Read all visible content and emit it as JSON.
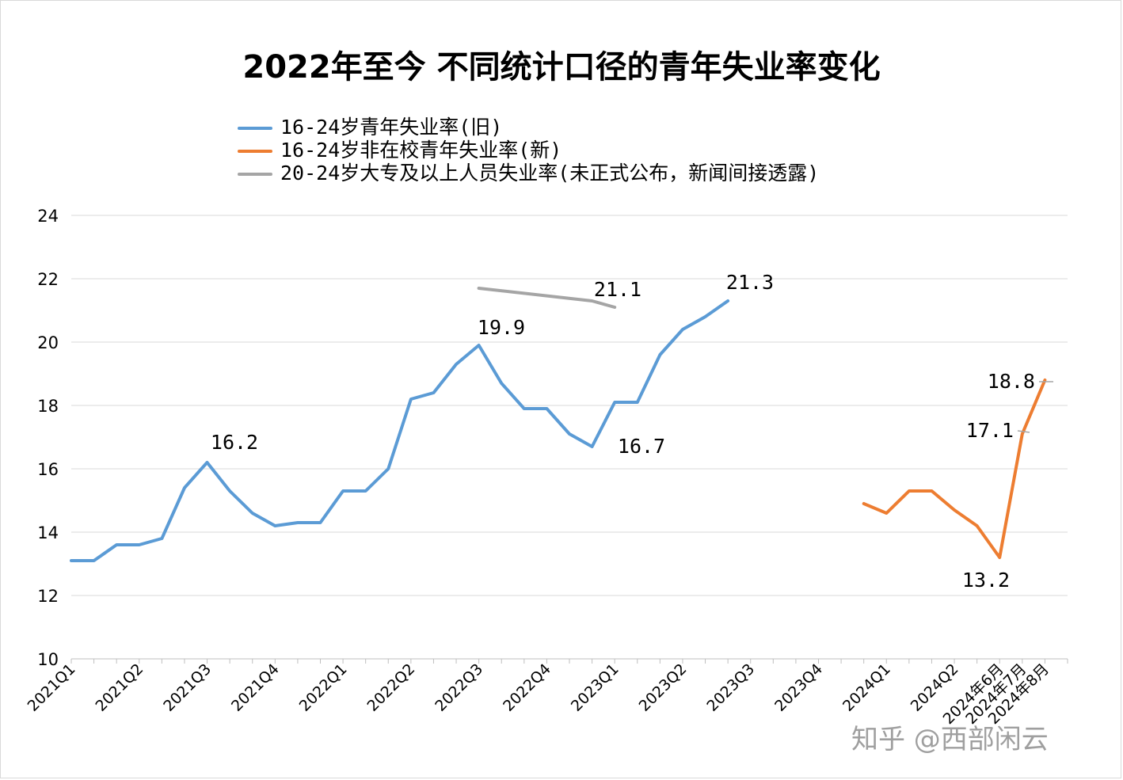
{
  "chart_data": {
    "type": "line",
    "title": "2022年至今 不同统计口径的青年失业率变化",
    "ylim": [
      10,
      24
    ],
    "yticks": [
      10,
      12,
      14,
      16,
      18,
      20,
      22,
      24
    ],
    "grid": true,
    "legend_position": "top-left",
    "x_tick_labels": [
      "2021Q1",
      "2021Q2",
      "2021Q3",
      "2021Q4",
      "2022Q1",
      "2022Q2",
      "2022Q3",
      "2022Q4",
      "2023Q1",
      "2023Q2",
      "2023Q3",
      "2023Q4",
      "2024Q1",
      "2024Q2",
      "2024年6月",
      "2024年7月",
      "2024年8月"
    ],
    "series": [
      {
        "name": "16-24岁青年失业率(旧)",
        "color": "#5b9bd5",
        "x": [
          "2021-01",
          "2021-02",
          "2021-03",
          "2021-04",
          "2021-05",
          "2021-06",
          "2021-07",
          "2021-08",
          "2021-09",
          "2021-10",
          "2021-11",
          "2021-12",
          "2022-01",
          "2022-02",
          "2022-03",
          "2022-04",
          "2022-05",
          "2022-06",
          "2022-07",
          "2022-08",
          "2022-09",
          "2022-10",
          "2022-11",
          "2022-12",
          "2023-01",
          "2023-02",
          "2023-03",
          "2023-04",
          "2023-05",
          "2023-06"
        ],
        "values": [
          13.1,
          13.1,
          13.6,
          13.6,
          13.8,
          15.4,
          16.2,
          15.3,
          14.6,
          14.2,
          14.3,
          14.3,
          15.3,
          15.3,
          16.0,
          18.2,
          18.4,
          19.3,
          19.9,
          18.7,
          17.9,
          17.9,
          17.1,
          16.7,
          18.1,
          18.1,
          19.6,
          20.4,
          20.8,
          21.3
        ]
      },
      {
        "name": "16-24岁非在校青年失业率(新)",
        "color": "#ed7d31",
        "x": [
          "2023-12",
          "2024-01",
          "2024-02",
          "2024-03",
          "2024-04",
          "2024-05",
          "2024-06",
          "2024-07",
          "2024-08"
        ],
        "values": [
          14.9,
          14.6,
          15.3,
          15.3,
          14.7,
          14.2,
          13.2,
          17.1,
          18.8
        ]
      },
      {
        "name": "20-24岁大专及以上人员失业率(未正式公布，新闻间接透露)",
        "color": "#a5a5a5",
        "x": [
          "2022-07",
          "2022-12",
          "2023-01"
        ],
        "values": [
          21.7,
          21.3,
          21.1
        ]
      }
    ],
    "annotations": [
      "16.2",
      "19.9",
      "21.1",
      "16.7",
      "21.3",
      "18.8",
      "17.1",
      "13.2"
    ]
  },
  "watermark": "知乎 @西部闲云"
}
